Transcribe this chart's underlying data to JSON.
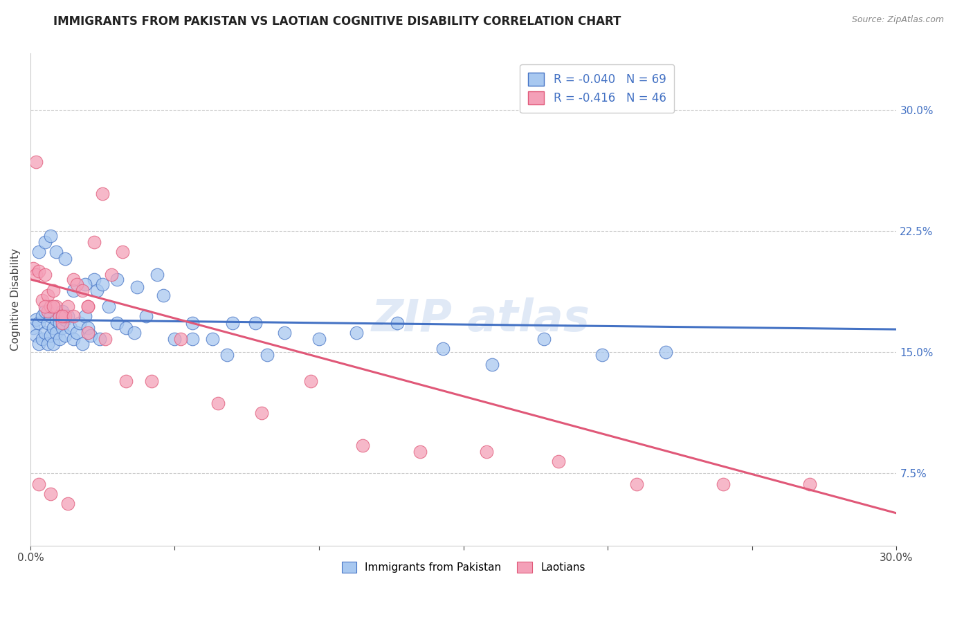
{
  "title": "IMMIGRANTS FROM PAKISTAN VS LAOTIAN COGNITIVE DISABILITY CORRELATION CHART",
  "source": "Source: ZipAtlas.com",
  "ylabel": "Cognitive Disability",
  "y_ticks": [
    0.075,
    0.15,
    0.225,
    0.3
  ],
  "y_tick_labels": [
    "7.5%",
    "15.0%",
    "22.5%",
    "30.0%"
  ],
  "x_lim": [
    0.0,
    0.3
  ],
  "y_lim": [
    0.03,
    0.335
  ],
  "legend_r1": "R = -0.040",
  "legend_n1": "N = 69",
  "legend_r2": "R = -0.416",
  "legend_n2": "N = 46",
  "color_blue": "#A8C8F0",
  "color_pink": "#F4A0B8",
  "color_blue_line": "#4472C4",
  "color_pink_line": "#E05878",
  "color_legend_text": "#4472C4",
  "blue_x": [
    0.001,
    0.002,
    0.002,
    0.003,
    0.003,
    0.004,
    0.004,
    0.005,
    0.005,
    0.006,
    0.006,
    0.007,
    0.007,
    0.008,
    0.008,
    0.009,
    0.009,
    0.01,
    0.01,
    0.011,
    0.011,
    0.012,
    0.012,
    0.013,
    0.014,
    0.015,
    0.016,
    0.017,
    0.018,
    0.019,
    0.02,
    0.021,
    0.022,
    0.023,
    0.025,
    0.027,
    0.03,
    0.033,
    0.036,
    0.04,
    0.044,
    0.05,
    0.056,
    0.063,
    0.07,
    0.078,
    0.088,
    0.1,
    0.113,
    0.127,
    0.143,
    0.16,
    0.178,
    0.198,
    0.22,
    0.003,
    0.005,
    0.007,
    0.009,
    0.012,
    0.015,
    0.019,
    0.024,
    0.03,
    0.037,
    0.046,
    0.056,
    0.068,
    0.082
  ],
  "blue_y": [
    0.165,
    0.17,
    0.16,
    0.168,
    0.155,
    0.172,
    0.158,
    0.175,
    0.162,
    0.168,
    0.155,
    0.172,
    0.16,
    0.165,
    0.155,
    0.162,
    0.17,
    0.168,
    0.158,
    0.165,
    0.175,
    0.16,
    0.17,
    0.172,
    0.165,
    0.158,
    0.162,
    0.168,
    0.155,
    0.172,
    0.165,
    0.16,
    0.195,
    0.188,
    0.192,
    0.178,
    0.168,
    0.165,
    0.162,
    0.172,
    0.198,
    0.158,
    0.158,
    0.158,
    0.168,
    0.168,
    0.162,
    0.158,
    0.162,
    0.168,
    0.152,
    0.142,
    0.158,
    0.148,
    0.15,
    0.212,
    0.218,
    0.222,
    0.212,
    0.208,
    0.188,
    0.192,
    0.158,
    0.195,
    0.19,
    0.185,
    0.168,
    0.148,
    0.148
  ],
  "pink_x": [
    0.001,
    0.002,
    0.002,
    0.003,
    0.004,
    0.005,
    0.006,
    0.006,
    0.007,
    0.008,
    0.009,
    0.01,
    0.011,
    0.012,
    0.013,
    0.015,
    0.016,
    0.018,
    0.02,
    0.022,
    0.025,
    0.028,
    0.032,
    0.005,
    0.008,
    0.011,
    0.015,
    0.02,
    0.026,
    0.033,
    0.042,
    0.052,
    0.065,
    0.08,
    0.097,
    0.115,
    0.135,
    0.158,
    0.183,
    0.21,
    0.24,
    0.27,
    0.003,
    0.007,
    0.013,
    0.02
  ],
  "pink_y": [
    0.202,
    0.268,
    0.198,
    0.2,
    0.182,
    0.198,
    0.185,
    0.175,
    0.178,
    0.188,
    0.178,
    0.172,
    0.168,
    0.172,
    0.178,
    0.195,
    0.192,
    0.188,
    0.178,
    0.218,
    0.248,
    0.198,
    0.212,
    0.178,
    0.178,
    0.172,
    0.172,
    0.162,
    0.158,
    0.132,
    0.132,
    0.158,
    0.118,
    0.112,
    0.132,
    0.092,
    0.088,
    0.088,
    0.082,
    0.068,
    0.068,
    0.068,
    0.068,
    0.062,
    0.056,
    0.178
  ],
  "blue_trend": [
    0.0,
    0.3
  ],
  "blue_trend_y": [
    0.17,
    0.164
  ],
  "pink_trend": [
    0.0,
    0.3
  ],
  "pink_trend_y": [
    0.195,
    0.05
  ]
}
